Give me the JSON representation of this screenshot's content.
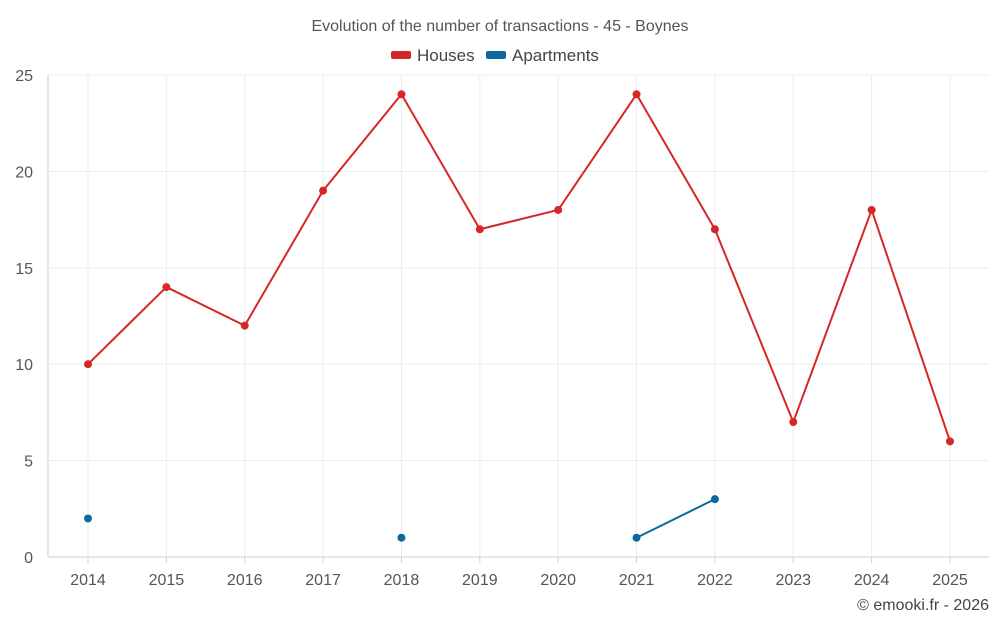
{
  "chart_data": {
    "type": "line",
    "title": "Evolution of the number of transactions - 45 - Boynes",
    "x": [
      2014,
      2015,
      2016,
      2017,
      2018,
      2019,
      2020,
      2021,
      2022,
      2023,
      2024,
      2025
    ],
    "x_tick_labels": [
      "2014",
      "2015",
      "2016",
      "2017",
      "2018",
      "2019",
      "2020",
      "2021",
      "2022",
      "2023",
      "2024",
      "2025"
    ],
    "ylim": [
      0,
      25
    ],
    "y_ticks": [
      0,
      5,
      10,
      15,
      20,
      25
    ],
    "y_tick_labels": [
      "0",
      "5",
      "10",
      "15",
      "20",
      "25"
    ],
    "grid": true,
    "legend_position": "top-center",
    "series": [
      {
        "name": "Houses",
        "color": "#d62728",
        "values": [
          10,
          14,
          12,
          19,
          24,
          17,
          18,
          24,
          17,
          7,
          18,
          6
        ]
      },
      {
        "name": "Apartments",
        "color": "#0b6a9b",
        "values": [
          2,
          null,
          null,
          null,
          1,
          null,
          null,
          1,
          3,
          null,
          null,
          null
        ]
      }
    ]
  },
  "credit": "© emooki.fr - 2026"
}
